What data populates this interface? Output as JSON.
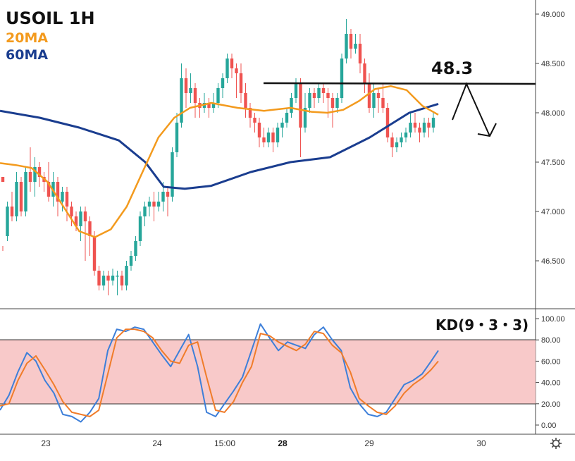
{
  "chart_data": [
    {
      "type": "candlestick",
      "title": "USOIL 1H",
      "legend": [
        {
          "name": "20MA",
          "color": "#f39a1d"
        },
        {
          "name": "60MA",
          "color": "#1a3d8f"
        }
      ],
      "annotation": {
        "label": "48.3",
        "level": 48.3,
        "direction": "down"
      },
      "ylim": [
        46.0,
        49.1
      ],
      "y_ticks": [
        "49.000",
        "48.500",
        "48.000",
        "47.500",
        "47.000",
        "46.500"
      ],
      "x_ticks": [
        {
          "label": "23",
          "bold": false
        },
        {
          "label": "24",
          "bold": false
        },
        {
          "label": "15:00",
          "bold": false
        },
        {
          "label": "28",
          "bold": true
        },
        {
          "label": "29",
          "bold": false
        },
        {
          "label": "30",
          "bold": false
        }
      ],
      "colors": {
        "up": "#26a69a",
        "down": "#ef5350",
        "ma20": "#f39a1d",
        "ma60": "#1a3d8f"
      },
      "candles": [
        [
          47.35,
          47.3,
          46.65,
          46.6
        ],
        [
          46.75,
          47.05,
          47.1,
          46.7
        ],
        [
          47.05,
          46.95,
          47.2,
          46.9
        ],
        [
          46.95,
          47.3,
          47.4,
          46.9
        ],
        [
          47.3,
          47.0,
          47.35,
          46.95
        ],
        [
          47.0,
          47.4,
          47.45,
          46.95
        ],
        [
          47.4,
          47.3,
          47.65,
          47.2
        ],
        [
          47.3,
          47.45,
          47.55,
          47.15
        ],
        [
          47.45,
          47.35,
          47.5,
          47.25
        ],
        [
          47.35,
          47.3,
          47.4,
          47.2
        ],
        [
          47.3,
          47.15,
          47.5,
          47.1
        ],
        [
          47.15,
          47.3,
          47.4,
          47.05
        ],
        [
          47.3,
          47.1,
          47.35,
          46.95
        ],
        [
          47.1,
          47.2,
          47.25,
          47.0
        ],
        [
          47.2,
          47.05,
          47.25,
          46.9
        ],
        [
          47.05,
          46.95,
          47.1,
          46.85
        ],
        [
          46.95,
          46.85,
          47.0,
          46.8
        ],
        [
          46.85,
          47.0,
          47.05,
          46.7
        ],
        [
          47.0,
          46.9,
          47.05,
          46.5
        ],
        [
          46.9,
          46.75,
          46.95,
          46.55
        ],
        [
          46.75,
          46.4,
          46.8,
          46.35
        ],
        [
          46.4,
          46.25,
          46.45,
          46.2
        ],
        [
          46.25,
          46.35,
          46.4,
          46.2
        ],
        [
          46.35,
          46.3,
          46.4,
          46.15
        ],
        [
          46.3,
          46.35,
          46.42,
          46.25
        ],
        [
          46.35,
          46.35,
          46.4,
          46.15
        ],
        [
          46.35,
          46.25,
          46.4,
          46.2
        ],
        [
          46.25,
          46.45,
          46.5,
          46.2
        ],
        [
          46.45,
          46.55,
          46.6,
          46.4
        ],
        [
          46.55,
          46.7,
          46.75,
          46.5
        ],
        [
          46.7,
          46.95,
          47.0,
          46.65
        ],
        [
          46.95,
          47.05,
          47.1,
          46.85
        ],
        [
          47.05,
          47.1,
          47.15,
          46.95
        ],
        [
          47.1,
          47.05,
          47.2,
          46.9
        ],
        [
          47.05,
          47.1,
          47.2,
          47.0
        ],
        [
          47.1,
          47.2,
          47.3,
          47.0
        ],
        [
          47.2,
          47.15,
          47.25,
          46.95
        ],
        [
          47.15,
          47.6,
          47.65,
          47.1
        ],
        [
          47.6,
          47.9,
          48.0,
          47.55
        ],
        [
          47.9,
          48.35,
          48.5,
          47.85
        ],
        [
          48.35,
          48.2,
          48.45,
          48.05
        ],
        [
          48.2,
          48.25,
          48.4,
          48.1
        ],
        [
          48.25,
          48.1,
          48.3,
          47.95
        ],
        [
          48.1,
          48.05,
          48.15,
          47.95
        ],
        [
          48.05,
          48.1,
          48.2,
          48.0
        ],
        [
          48.1,
          48.05,
          48.15,
          47.95
        ],
        [
          48.05,
          48.1,
          48.2,
          48.0
        ],
        [
          48.1,
          48.25,
          48.3,
          48.05
        ],
        [
          48.25,
          48.35,
          48.4,
          48.15
        ],
        [
          48.35,
          48.55,
          48.6,
          48.3
        ],
        [
          48.55,
          48.45,
          48.6,
          48.35
        ],
        [
          48.45,
          48.4,
          48.5,
          48.15
        ],
        [
          48.4,
          48.2,
          48.5,
          48.1
        ],
        [
          48.2,
          48.05,
          48.3,
          47.95
        ],
        [
          48.05,
          47.95,
          48.1,
          47.85
        ],
        [
          47.95,
          47.9,
          48.0,
          47.8
        ],
        [
          47.9,
          47.75,
          47.95,
          47.65
        ],
        [
          47.75,
          47.7,
          47.85,
          47.65
        ],
        [
          47.7,
          47.8,
          47.85,
          47.65
        ],
        [
          47.8,
          47.7,
          47.85,
          47.6
        ],
        [
          47.7,
          47.85,
          47.9,
          47.65
        ],
        [
          47.85,
          47.9,
          47.95,
          47.75
        ],
        [
          47.9,
          48.0,
          48.05,
          47.85
        ],
        [
          48.0,
          48.15,
          48.2,
          47.95
        ],
        [
          48.15,
          48.3,
          48.35,
          48.1
        ],
        [
          48.3,
          47.85,
          48.35,
          47.55
        ],
        [
          47.85,
          48.05,
          48.2,
          47.8
        ],
        [
          48.05,
          48.2,
          48.25,
          48.0
        ],
        [
          48.2,
          48.15,
          48.25,
          48.05
        ],
        [
          48.15,
          48.25,
          48.3,
          48.1
        ],
        [
          48.25,
          48.2,
          48.3,
          48.1
        ],
        [
          48.2,
          48.15,
          48.25,
          47.95
        ],
        [
          48.15,
          48.05,
          48.2,
          47.85
        ],
        [
          48.05,
          48.15,
          48.2,
          48.0
        ],
        [
          48.15,
          48.55,
          48.6,
          48.1
        ],
        [
          48.55,
          48.8,
          48.95,
          48.5
        ],
        [
          48.8,
          48.65,
          48.85,
          48.55
        ],
        [
          48.65,
          48.7,
          48.8,
          48.6
        ],
        [
          48.7,
          48.5,
          48.8,
          48.4
        ],
        [
          48.5,
          48.3,
          48.55,
          48.2
        ],
        [
          48.3,
          48.05,
          48.4,
          48.0
        ],
        [
          48.05,
          48.2,
          48.3,
          47.95
        ],
        [
          48.2,
          48.15,
          48.25,
          48.0
        ],
        [
          48.15,
          48.05,
          48.3,
          48.0
        ],
        [
          48.05,
          47.75,
          48.1,
          47.7
        ],
        [
          47.75,
          47.65,
          47.8,
          47.55
        ],
        [
          47.65,
          47.7,
          47.75,
          47.6
        ],
        [
          47.7,
          47.75,
          47.8,
          47.65
        ],
        [
          47.75,
          47.8,
          47.85,
          47.7
        ],
        [
          47.8,
          47.9,
          48.0,
          47.75
        ],
        [
          47.9,
          47.85,
          48.0,
          47.8
        ],
        [
          47.85,
          47.8,
          47.9,
          47.7
        ],
        [
          47.8,
          47.9,
          47.95,
          47.75
        ],
        [
          47.9,
          47.85,
          47.95,
          47.75
        ],
        [
          47.85,
          47.95,
          48.0,
          47.8
        ]
      ],
      "ma20": [
        [
          0,
          47.49
        ],
        [
          6,
          47.47
        ],
        [
          12,
          47.44
        ],
        [
          18,
          47.3
        ],
        [
          24,
          47.05
        ],
        [
          30,
          46.8
        ],
        [
          36,
          46.74
        ],
        [
          42,
          46.82
        ],
        [
          48,
          47.05
        ],
        [
          54,
          47.4
        ],
        [
          60,
          47.75
        ],
        [
          66,
          47.95
        ],
        [
          72,
          48.05
        ],
        [
          80,
          48.1
        ],
        [
          90,
          48.05
        ],
        [
          100,
          48.02
        ],
        [
          110,
          48.05
        ],
        [
          118,
          48.01
        ],
        [
          124,
          48.0
        ],
        [
          130,
          48.03
        ],
        [
          136,
          48.12
        ],
        [
          142,
          48.24
        ],
        [
          148,
          48.27
        ],
        [
          154,
          48.23
        ],
        [
          160,
          48.07
        ],
        [
          166,
          47.98
        ]
      ],
      "ma60": [
        [
          0,
          48.02
        ],
        [
          15,
          47.95
        ],
        [
          30,
          47.85
        ],
        [
          45,
          47.72
        ],
        [
          55,
          47.5
        ],
        [
          62,
          47.25
        ],
        [
          70,
          47.23
        ],
        [
          80,
          47.26
        ],
        [
          95,
          47.4
        ],
        [
          110,
          47.5
        ],
        [
          125,
          47.55
        ],
        [
          140,
          47.75
        ],
        [
          155,
          48.0
        ],
        [
          166,
          48.09
        ]
      ]
    },
    {
      "type": "line",
      "title": "KD(9・3・3)",
      "ylim": [
        -10,
        110
      ],
      "y_ticks": [
        "100.00",
        "80.00",
        "60.00",
        "40.00",
        "20.00",
        "0.00"
      ],
      "band": [
        20,
        80
      ],
      "series": [
        {
          "name": "K",
          "color": "#3d7fd9",
          "points": [
            [
              0,
              14
            ],
            [
              5,
              28
            ],
            [
              10,
              50
            ],
            [
              15,
              68
            ],
            [
              20,
              60
            ],
            [
              25,
              42
            ],
            [
              30,
              30
            ],
            [
              35,
              10
            ],
            [
              40,
              8
            ],
            [
              45,
              3
            ],
            [
              50,
              12
            ],
            [
              55,
              25
            ],
            [
              60,
              70
            ],
            [
              65,
              90
            ],
            [
              70,
              88
            ],
            [
              75,
              92
            ],
            [
              80,
              90
            ],
            [
              85,
              78
            ],
            [
              90,
              66
            ],
            [
              95,
              55
            ],
            [
              100,
              70
            ],
            [
              105,
              85
            ],
            [
              110,
              55
            ],
            [
              115,
              12
            ],
            [
              120,
              8
            ],
            [
              125,
              20
            ],
            [
              130,
              32
            ],
            [
              135,
              45
            ],
            [
              140,
              70
            ],
            [
              145,
              95
            ],
            [
              150,
              82
            ],
            [
              155,
              70
            ],
            [
              160,
              78
            ],
            [
              165,
              75
            ],
            [
              170,
              72
            ],
            [
              175,
              85
            ],
            [
              180,
              92
            ],
            [
              185,
              80
            ],
            [
              190,
              70
            ],
            [
              195,
              35
            ],
            [
              200,
              20
            ],
            [
              205,
              10
            ],
            [
              210,
              8
            ],
            [
              215,
              12
            ],
            [
              220,
              25
            ],
            [
              225,
              38
            ],
            [
              230,
              42
            ],
            [
              235,
              48
            ],
            [
              240,
              60
            ],
            [
              244,
              70
            ]
          ]
        },
        {
          "name": "D",
          "color": "#f07c2a",
          "points": [
            [
              0,
              18
            ],
            [
              5,
              20
            ],
            [
              10,
              42
            ],
            [
              15,
              58
            ],
            [
              20,
              65
            ],
            [
              25,
              52
            ],
            [
              30,
              38
            ],
            [
              35,
              22
            ],
            [
              40,
              12
            ],
            [
              45,
              10
            ],
            [
              50,
              8
            ],
            [
              55,
              14
            ],
            [
              60,
              48
            ],
            [
              65,
              82
            ],
            [
              70,
              90
            ],
            [
              75,
              90
            ],
            [
              80,
              88
            ],
            [
              85,
              82
            ],
            [
              90,
              70
            ],
            [
              95,
              60
            ],
            [
              100,
              58
            ],
            [
              105,
              75
            ],
            [
              110,
              78
            ],
            [
              115,
              45
            ],
            [
              120,
              14
            ],
            [
              125,
              12
            ],
            [
              130,
              22
            ],
            [
              135,
              40
            ],
            [
              140,
              55
            ],
            [
              145,
              86
            ],
            [
              150,
              84
            ],
            [
              155,
              78
            ],
            [
              160,
              74
            ],
            [
              165,
              70
            ],
            [
              170,
              76
            ],
            [
              175,
              88
            ],
            [
              180,
              86
            ],
            [
              185,
              75
            ],
            [
              190,
              68
            ],
            [
              195,
              50
            ],
            [
              200,
              25
            ],
            [
              205,
              18
            ],
            [
              210,
              12
            ],
            [
              215,
              10
            ],
            [
              220,
              18
            ],
            [
              225,
              30
            ],
            [
              230,
              38
            ],
            [
              235,
              44
            ],
            [
              240,
              52
            ],
            [
              244,
              60
            ]
          ]
        }
      ]
    }
  ]
}
